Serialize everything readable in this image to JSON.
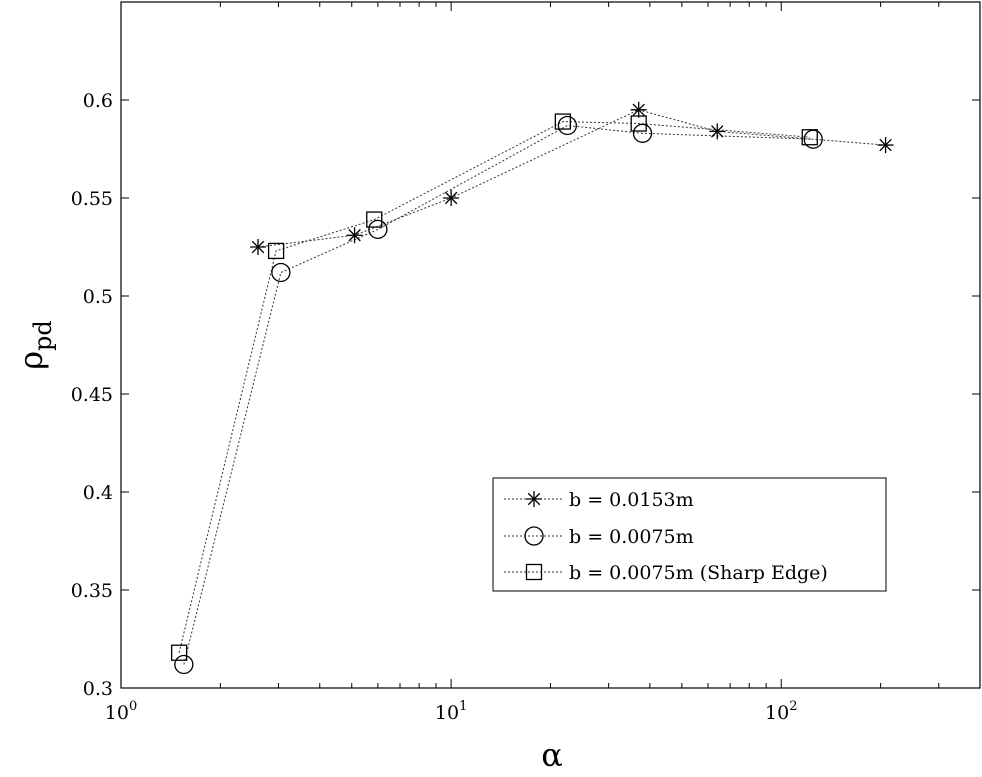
{
  "chart_data": {
    "type": "line",
    "title": "",
    "xlabel": "α",
    "ylabel": "ρ",
    "ylabel_subscript": "pd",
    "xscale": "log",
    "xlim": [
      1,
      400
    ],
    "ylim": [
      0.3,
      0.65
    ],
    "grid": false,
    "legend_position": "bottom-right",
    "x_ticks": [
      {
        "base": "10",
        "exp": "0",
        "value": 1
      },
      {
        "base": "10",
        "exp": "1",
        "value": 10
      },
      {
        "base": "10",
        "exp": "2",
        "value": 100
      }
    ],
    "y_ticks": [
      {
        "label": "0.3",
        "value": 0.3
      },
      {
        "label": "0.35",
        "value": 0.35
      },
      {
        "label": "0.4",
        "value": 0.4
      },
      {
        "label": "0.45",
        "value": 0.45
      },
      {
        "label": "0.5",
        "value": 0.5
      },
      {
        "label": "0.55",
        "value": 0.55
      },
      {
        "label": "0.6",
        "value": 0.6
      }
    ],
    "series": [
      {
        "name": "b = 0.0153m",
        "marker": "asterisk",
        "x": [
          2.6,
          5.1,
          10,
          37,
          64,
          207
        ],
        "y": [
          0.525,
          0.531,
          0.55,
          0.595,
          0.584,
          0.577
        ]
      },
      {
        "name": "b = 0.0075m",
        "marker": "circle",
        "x": [
          1.55,
          3.05,
          6,
          22.5,
          38,
          125
        ],
        "y": [
          0.312,
          0.512,
          0.534,
          0.587,
          0.583,
          0.58
        ]
      },
      {
        "name": "b = 0.0075m (Sharp Edge)",
        "marker": "square",
        "x": [
          1.5,
          2.95,
          5.85,
          21.8,
          37,
          122
        ],
        "y": [
          0.318,
          0.523,
          0.539,
          0.589,
          0.588,
          0.581
        ]
      }
    ]
  }
}
